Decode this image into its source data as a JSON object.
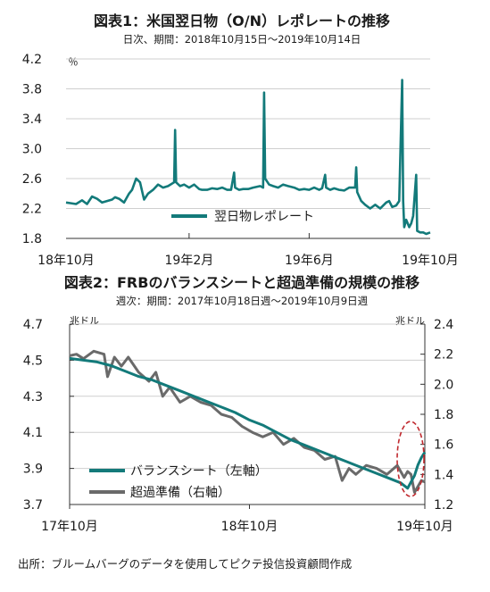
{
  "colors": {
    "teal": "#137a7a",
    "gray": "#6a6a6a",
    "circle": "#c0282d"
  },
  "source": "出所：ブルームバーグのデータを使用してピクテ投信投資顧問作成",
  "chart_data": [
    {
      "type": "line",
      "title": "図表1：米国翌日物（O/N）レポレートの推移",
      "subtitle": "日次、期間：2018年10月15日～2019年10月14日",
      "unit": "％",
      "ylim": [
        1.8,
        4.2
      ],
      "yticks": [
        1.8,
        2.2,
        2.6,
        3.0,
        3.4,
        3.8,
        4.2
      ],
      "ytick_labels": [
        "1.8",
        "2.2",
        "2.6",
        "3.0",
        "3.4",
        "3.8",
        "4.2"
      ],
      "xlim": [
        "2018-10-15",
        "2019-10-14"
      ],
      "xticks": [
        "2018-10-15",
        "2019-02-15",
        "2019-06-15",
        "2019-10-14"
      ],
      "xtick_labels": [
        "18年10月",
        "19年2月",
        "19年6月",
        "19年10月"
      ],
      "grid": true,
      "legend_position": "bottom-center",
      "series": [
        {
          "name": "翌日物レポレート",
          "color": "#137a7a",
          "points": [
            [
              "2018-10-15",
              2.28
            ],
            [
              "2018-10-20",
              2.27
            ],
            [
              "2018-10-25",
              2.26
            ],
            [
              "2018-10-31",
              2.31
            ],
            [
              "2018-11-05",
              2.26
            ],
            [
              "2018-11-10",
              2.36
            ],
            [
              "2018-11-15",
              2.33
            ],
            [
              "2018-11-20",
              2.28
            ],
            [
              "2018-11-25",
              2.3
            ],
            [
              "2018-11-30",
              2.32
            ],
            [
              "2018-12-03",
              2.35
            ],
            [
              "2018-12-07",
              2.33
            ],
            [
              "2018-12-12",
              2.28
            ],
            [
              "2018-12-17",
              2.4
            ],
            [
              "2018-12-20",
              2.45
            ],
            [
              "2018-12-24",
              2.6
            ],
            [
              "2018-12-28",
              2.55
            ],
            [
              "2019-01-01",
              2.32
            ],
            [
              "2019-01-05",
              2.4
            ],
            [
              "2019-01-10",
              2.45
            ],
            [
              "2019-01-15",
              2.52
            ],
            [
              "2019-01-20",
              2.48
            ],
            [
              "2019-01-25",
              2.5
            ],
            [
              "2019-01-31",
              2.55
            ],
            [
              "2019-02-01",
              3.25
            ],
            [
              "2019-02-02",
              2.55
            ],
            [
              "2019-02-06",
              2.5
            ],
            [
              "2019-02-10",
              2.52
            ],
            [
              "2019-02-15",
              2.48
            ],
            [
              "2019-02-20",
              2.52
            ],
            [
              "2019-02-25",
              2.46
            ],
            [
              "2019-02-28",
              2.45
            ],
            [
              "2019-03-05",
              2.45
            ],
            [
              "2019-03-10",
              2.47
            ],
            [
              "2019-03-15",
              2.46
            ],
            [
              "2019-03-20",
              2.48
            ],
            [
              "2019-03-25",
              2.45
            ],
            [
              "2019-03-29",
              2.45
            ],
            [
              "2019-04-01",
              2.68
            ],
            [
              "2019-04-02",
              2.48
            ],
            [
              "2019-04-06",
              2.45
            ],
            [
              "2019-04-10",
              2.46
            ],
            [
              "2019-04-15",
              2.46
            ],
            [
              "2019-04-20",
              2.48
            ],
            [
              "2019-04-27",
              2.5
            ],
            [
              "2019-04-30",
              2.48
            ],
            [
              "2019-05-01",
              3.75
            ],
            [
              "2019-05-02",
              2.6
            ],
            [
              "2019-05-06",
              2.52
            ],
            [
              "2019-05-10",
              2.5
            ],
            [
              "2019-05-15",
              2.48
            ],
            [
              "2019-05-20",
              2.52
            ],
            [
              "2019-05-25",
              2.5
            ],
            [
              "2019-05-31",
              2.48
            ],
            [
              "2019-06-05",
              2.45
            ],
            [
              "2019-06-10",
              2.46
            ],
            [
              "2019-06-15",
              2.45
            ],
            [
              "2019-06-20",
              2.48
            ],
            [
              "2019-06-25",
              2.45
            ],
            [
              "2019-06-28",
              2.47
            ],
            [
              "2019-07-01",
              2.65
            ],
            [
              "2019-07-02",
              2.48
            ],
            [
              "2019-07-06",
              2.45
            ],
            [
              "2019-07-10",
              2.47
            ],
            [
              "2019-07-15",
              2.45
            ],
            [
              "2019-07-20",
              2.44
            ],
            [
              "2019-07-25",
              2.48
            ],
            [
              "2019-07-31",
              2.48
            ],
            [
              "2019-08-01",
              2.75
            ],
            [
              "2019-08-02",
              2.42
            ],
            [
              "2019-08-06",
              2.3
            ],
            [
              "2019-08-10",
              2.25
            ],
            [
              "2019-08-15",
              2.2
            ],
            [
              "2019-08-20",
              2.25
            ],
            [
              "2019-08-25",
              2.2
            ],
            [
              "2019-08-31",
              2.28
            ],
            [
              "2019-09-03",
              2.3
            ],
            [
              "2019-09-06",
              2.22
            ],
            [
              "2019-09-10",
              2.24
            ],
            [
              "2019-09-13",
              2.3
            ],
            [
              "2019-09-16",
              3.92
            ],
            [
              "2019-09-17",
              2.3
            ],
            [
              "2019-09-18",
              1.95
            ],
            [
              "2019-09-20",
              2.05
            ],
            [
              "2019-09-23",
              1.95
            ],
            [
              "2019-09-25",
              2.0
            ],
            [
              "2019-09-27",
              2.1
            ],
            [
              "2019-09-30",
              2.65
            ],
            [
              "2019-10-01",
              1.9
            ],
            [
              "2019-10-04",
              1.88
            ],
            [
              "2019-10-07",
              1.88
            ],
            [
              "2019-10-10",
              1.86
            ],
            [
              "2019-10-14",
              1.88
            ]
          ]
        }
      ]
    },
    {
      "type": "line",
      "title": "図表2：FRBのバランスシートと超過準備の規模の推移",
      "subtitle": "週次：期間：2017年10月18日週～2019年10月9日週",
      "y_left_unit": "兆ドル",
      "y_right_unit": "兆ドル",
      "ylim_left": [
        3.7,
        4.7
      ],
      "yticks_left": [
        3.7,
        3.9,
        4.1,
        4.3,
        4.5,
        4.7
      ],
      "ytick_labels_left": [
        "3.7",
        "3.9",
        "4.1",
        "4.3",
        "4.5",
        "4.7"
      ],
      "ylim_right": [
        1.2,
        2.4
      ],
      "yticks_right": [
        1.2,
        1.4,
        1.6,
        1.8,
        2.0,
        2.2,
        2.4
      ],
      "ytick_labels_right": [
        "1.2",
        "1.4",
        "1.6",
        "1.8",
        "2.0",
        "2.2",
        "2.4"
      ],
      "xlim": [
        "2017-10-18",
        "2019-10-09"
      ],
      "xticks": [
        "2017-10-18",
        "2018-10-18",
        "2019-10-09"
      ],
      "xtick_labels": [
        "17年10月",
        "18年10月",
        "19年10月"
      ],
      "grid": true,
      "legend_position": "bottom-left",
      "highlight": "dashed-ellipse-around-latest-values",
      "series": [
        {
          "name": "バランスシート（左軸）",
          "axis": "left",
          "color": "#137a7a",
          "points": [
            [
              "2017-10-18",
              4.51
            ],
            [
              "2017-11-15",
              4.5
            ],
            [
              "2017-12-13",
              4.49
            ],
            [
              "2018-01-10",
              4.47
            ],
            [
              "2018-02-07",
              4.44
            ],
            [
              "2018-03-07",
              4.41
            ],
            [
              "2018-04-04",
              4.39
            ],
            [
              "2018-05-02",
              4.36
            ],
            [
              "2018-05-30",
              4.33
            ],
            [
              "2018-06-27",
              4.3
            ],
            [
              "2018-07-25",
              4.27
            ],
            [
              "2018-08-22",
              4.24
            ],
            [
              "2018-09-19",
              4.21
            ],
            [
              "2018-10-17",
              4.17
            ],
            [
              "2018-11-14",
              4.14
            ],
            [
              "2018-12-12",
              4.1
            ],
            [
              "2019-01-09",
              4.06
            ],
            [
              "2019-02-06",
              4.03
            ],
            [
              "2019-03-06",
              4.0
            ],
            [
              "2019-04-03",
              3.97
            ],
            [
              "2019-05-01",
              3.94
            ],
            [
              "2019-05-29",
              3.91
            ],
            [
              "2019-06-26",
              3.88
            ],
            [
              "2019-07-24",
              3.85
            ],
            [
              "2019-08-21",
              3.82
            ],
            [
              "2019-09-04",
              3.79
            ],
            [
              "2019-09-18",
              3.86
            ],
            [
              "2019-09-25",
              3.92
            ],
            [
              "2019-10-02",
              3.96
            ],
            [
              "2019-10-09",
              3.99
            ]
          ]
        },
        {
          "name": "超過準備（右軸）",
          "axis": "right",
          "color": "#6a6a6a",
          "points": [
            [
              "2017-10-18",
              2.19
            ],
            [
              "2017-11-01",
              2.2
            ],
            [
              "2017-11-15",
              2.17
            ],
            [
              "2017-12-06",
              2.22
            ],
            [
              "2017-12-27",
              2.2
            ],
            [
              "2018-01-03",
              2.05
            ],
            [
              "2018-01-17",
              2.18
            ],
            [
              "2018-01-31",
              2.12
            ],
            [
              "2018-02-14",
              2.18
            ],
            [
              "2018-03-07",
              2.08
            ],
            [
              "2018-03-28",
              2.02
            ],
            [
              "2018-04-11",
              2.08
            ],
            [
              "2018-04-25",
              1.92
            ],
            [
              "2018-05-09",
              1.98
            ],
            [
              "2018-05-30",
              1.88
            ],
            [
              "2018-06-20",
              1.92
            ],
            [
              "2018-07-11",
              1.88
            ],
            [
              "2018-08-01",
              1.86
            ],
            [
              "2018-08-22",
              1.8
            ],
            [
              "2018-09-12",
              1.78
            ],
            [
              "2018-10-03",
              1.72
            ],
            [
              "2018-10-24",
              1.68
            ],
            [
              "2018-11-14",
              1.65
            ],
            [
              "2018-12-05",
              1.68
            ],
            [
              "2018-12-26",
              1.6
            ],
            [
              "2019-01-16",
              1.64
            ],
            [
              "2019-02-06",
              1.58
            ],
            [
              "2019-02-27",
              1.56
            ],
            [
              "2019-03-20",
              1.5
            ],
            [
              "2019-04-10",
              1.52
            ],
            [
              "2019-04-24",
              1.36
            ],
            [
              "2019-05-08",
              1.44
            ],
            [
              "2019-05-22",
              1.4
            ],
            [
              "2019-06-12",
              1.46
            ],
            [
              "2019-07-03",
              1.44
            ],
            [
              "2019-07-24",
              1.4
            ],
            [
              "2019-08-14",
              1.46
            ],
            [
              "2019-08-28",
              1.38
            ],
            [
              "2019-09-04",
              1.42
            ],
            [
              "2019-09-11",
              1.4
            ],
            [
              "2019-09-18",
              1.28
            ],
            [
              "2019-09-25",
              1.32
            ],
            [
              "2019-10-02",
              1.36
            ],
            [
              "2019-10-09",
              1.35
            ]
          ]
        }
      ]
    }
  ]
}
